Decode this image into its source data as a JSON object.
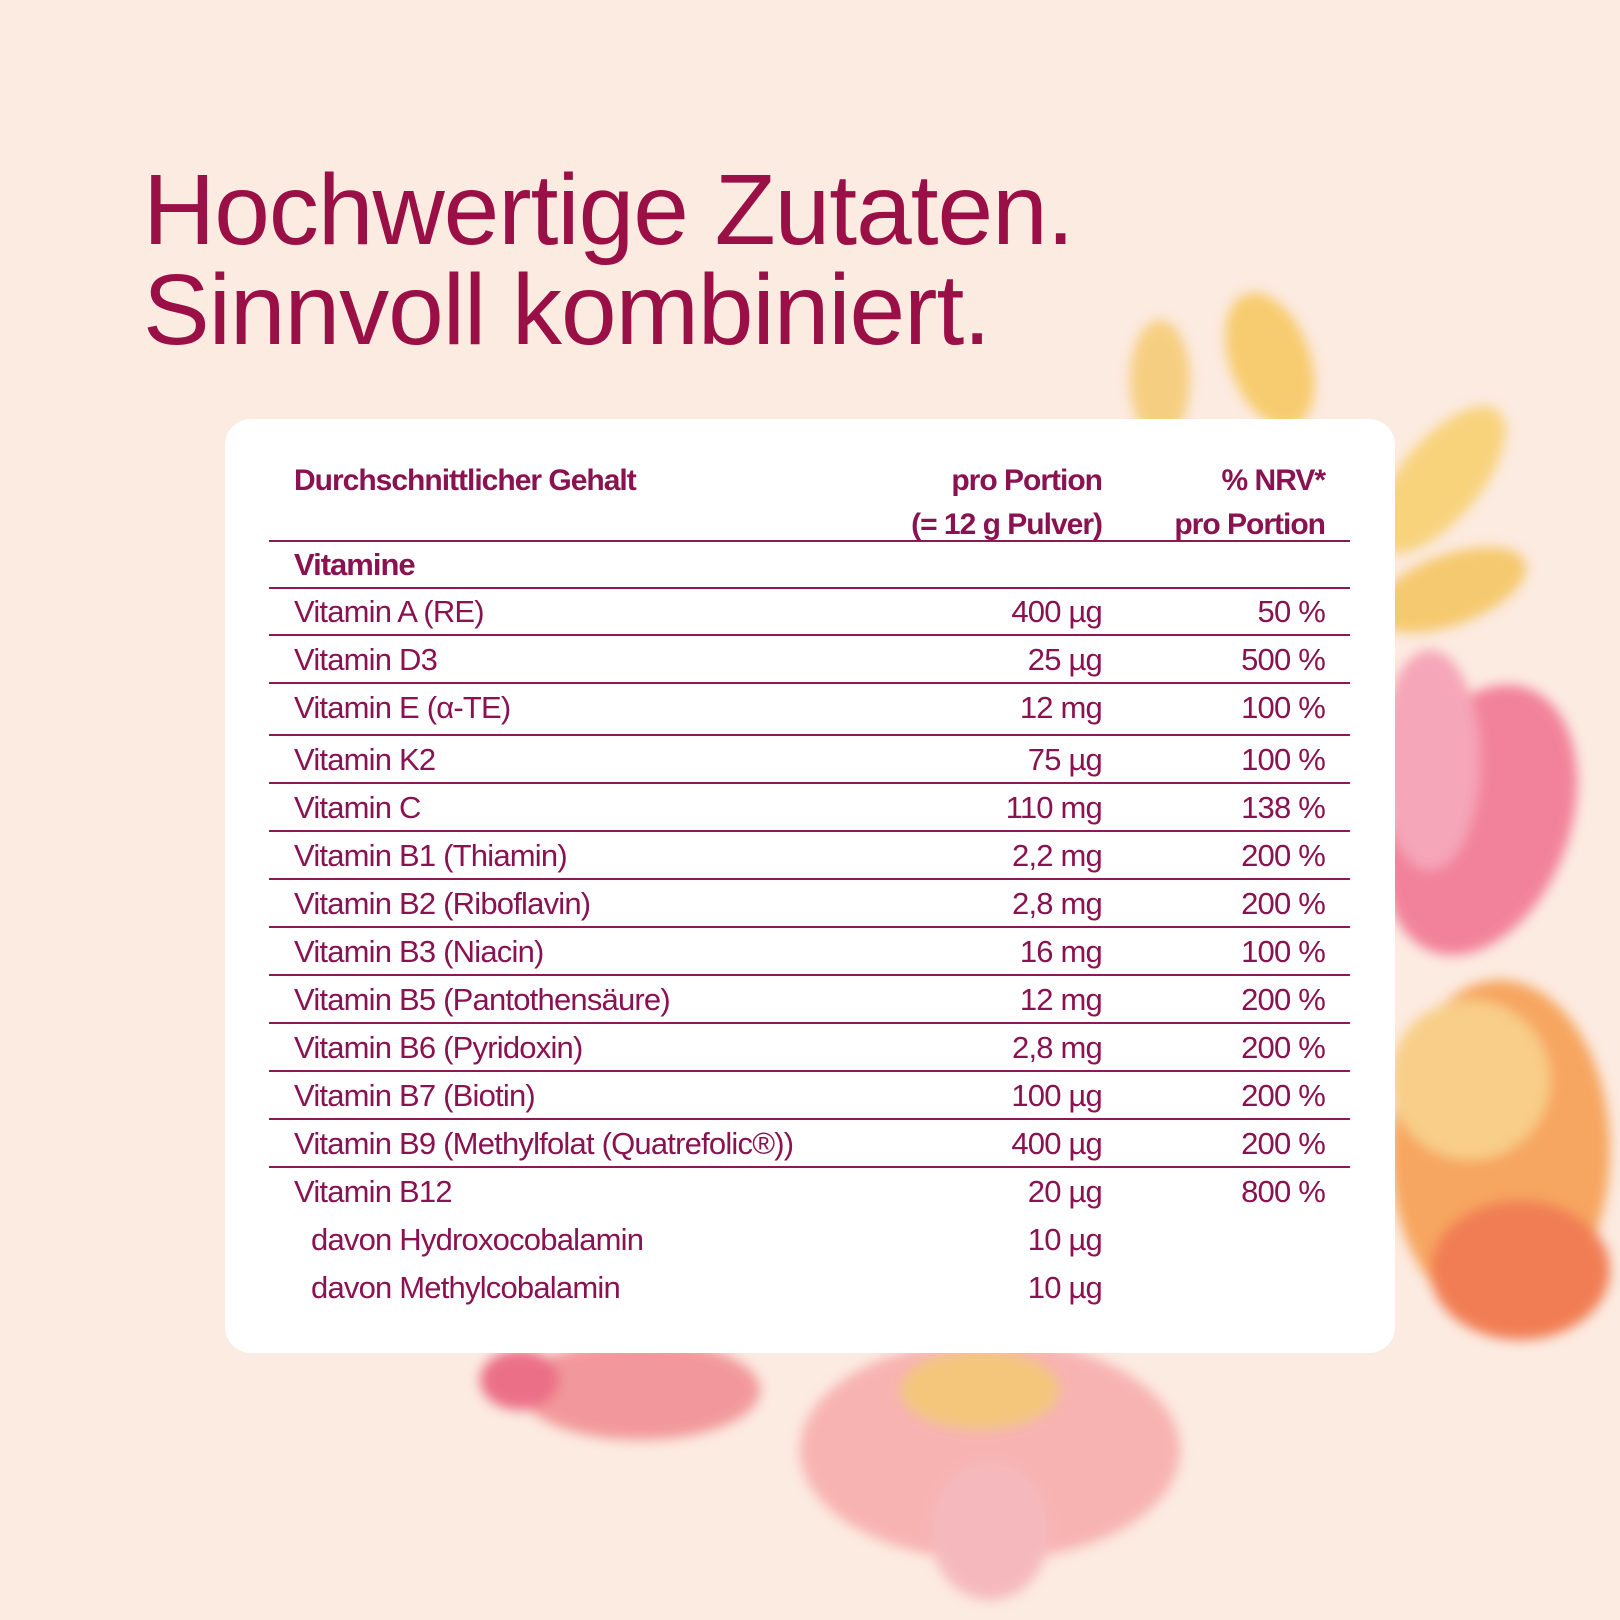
{
  "title": {
    "line1": "Hochwertige Zutaten.",
    "line2": "Sinnvoll kombiniert."
  },
  "table": {
    "header": {
      "col1": "Durchschnittlicher Gehalt",
      "col2_line1": "pro Portion",
      "col2_line2": "(= 12 g Pulver)",
      "col3_line1": "% NRV*",
      "col3_line2": "pro Portion"
    },
    "section": "Vitamine",
    "rows": [
      {
        "name": "Vitamin A (RE)",
        "amount": "400 µg",
        "nrv": "50 %"
      },
      {
        "name": "Vitamin D3",
        "amount": "25 µg",
        "nrv": "500 %"
      },
      {
        "name": "Vitamin E (α-TE)",
        "amount": "12 mg",
        "nrv": "100 %"
      },
      {
        "name": "Vitamin K2",
        "amount": "75 µg",
        "nrv": "100 %"
      },
      {
        "name": "Vitamin C",
        "amount": "110 mg",
        "nrv": "138 %"
      },
      {
        "name": "Vitamin B1 (Thiamin)",
        "amount": "2,2 mg",
        "nrv": "200 %"
      },
      {
        "name": "Vitamin B2 (Riboflavin)",
        "amount": "2,8 mg",
        "nrv": "200 %"
      },
      {
        "name": "Vitamin B3 (Niacin)",
        "amount": "16 mg",
        "nrv": "100 %"
      },
      {
        "name": "Vitamin B5 (Pantothensäure)",
        "amount": "12 mg",
        "nrv": "200 %"
      },
      {
        "name": "Vitamin B6 (Pyridoxin)",
        "amount": "2,8 mg",
        "nrv": "200 %"
      },
      {
        "name": "Vitamin B7 (Biotin)",
        "amount": "100 µg",
        "nrv": "200 %"
      },
      {
        "name": "Vitamin B9 (Methylfolat (Quatrefolic®))",
        "amount": "400 µg",
        "nrv": "200 %"
      },
      {
        "name": "Vitamin B12",
        "amount": "20 µg",
        "nrv": "800 %"
      },
      {
        "name": "davon Hydroxocobalamin",
        "amount": "10 µg",
        "nrv": ""
      },
      {
        "name": "davon Methylcobalamin",
        "amount": "10 µg",
        "nrv": ""
      }
    ]
  },
  "colors": {
    "background": "#fcebe1",
    "title": "#9b0f47",
    "table_text": "#8a1250"
  }
}
